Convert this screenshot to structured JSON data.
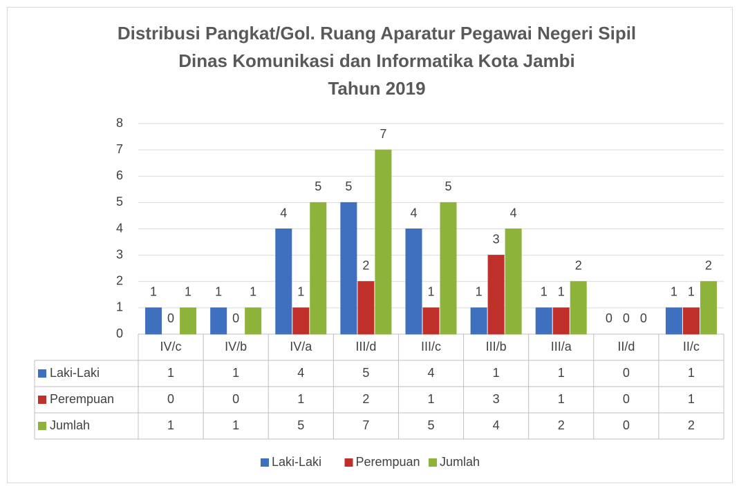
{
  "chart_data": {
    "type": "bar",
    "title_lines": [
      "Distribusi Pangkat/Gol. Ruang Aparatur Pegawai Negeri Sipil",
      "Dinas Komunikasi dan Informatika Kota Jambi",
      "Tahun 2019"
    ],
    "categories": [
      "IV/c",
      "IV/b",
      "IV/a",
      "III/d",
      "III/c",
      "III/b",
      "III/a",
      "II/d",
      "II/c"
    ],
    "series": [
      {
        "name": "Laki-Laki",
        "color": "#3f6fbf",
        "values": [
          1,
          1,
          4,
          5,
          4,
          1,
          1,
          0,
          1
        ]
      },
      {
        "name": "Perempuan",
        "color": "#c0302a",
        "values": [
          0,
          0,
          1,
          2,
          1,
          3,
          1,
          0,
          1
        ]
      },
      {
        "name": "Jumlah",
        "color": "#8db33a",
        "values": [
          1,
          1,
          5,
          7,
          5,
          4,
          2,
          0,
          2
        ]
      }
    ],
    "ylim": [
      0,
      8
    ],
    "yticks": [
      0,
      1,
      2,
      3,
      4,
      5,
      6,
      7,
      8
    ],
    "grid": true,
    "legend": "bottom"
  }
}
